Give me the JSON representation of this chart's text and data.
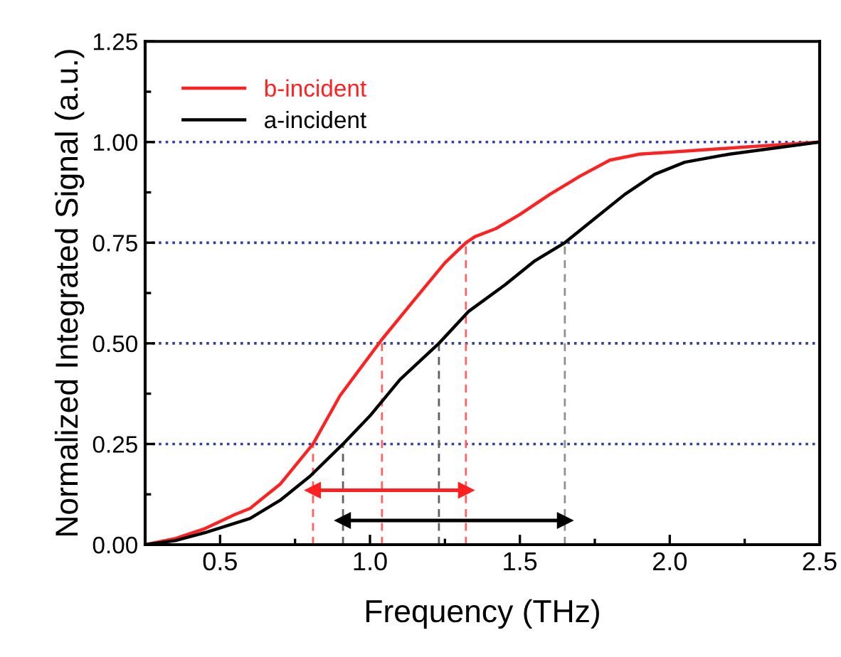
{
  "chart_data": {
    "type": "line",
    "xlabel": "Frequency (THz)",
    "ylabel": "Normalized Integrated Signal (a.u.)",
    "xlim": [
      0.25,
      2.5
    ],
    "xticks": [
      0.5,
      {
        "value": 1,
        "label": "1.0"
      },
      1.5,
      {
        "value": 2,
        "label": "2.0"
      },
      2.5
    ],
    "ylim": [
      0,
      1.25
    ],
    "yticks": [
      {
        "value": 0,
        "label": "0.00"
      },
      {
        "value": 0.25,
        "label": "0.25"
      },
      {
        "value": 0.5,
        "label": "0.50"
      },
      {
        "value": 0.75,
        "label": "0.75"
      },
      {
        "value": 1.0,
        "label": "1.00"
      },
      {
        "value": 1.25,
        "label": "1.25"
      }
    ],
    "grid": "y",
    "legend": "top left",
    "line_style": "solid",
    "marker": "none",
    "series": [
      {
        "name": "b-incident",
        "color": "#ff2020",
        "x": [
          0.25,
          0.35,
          0.45,
          0.55,
          0.6,
          0.7,
          0.81,
          0.9,
          1.04,
          1.15,
          1.25,
          1.32,
          1.35,
          1.42,
          1.5,
          1.6,
          1.7,
          1.8,
          1.9,
          2.0,
          2.2,
          2.5
        ],
        "values": [
          0,
          0.015,
          0.04,
          0.075,
          0.09,
          0.15,
          0.25,
          0.37,
          0.51,
          0.61,
          0.7,
          0.75,
          0.765,
          0.785,
          0.82,
          0.87,
          0.915,
          0.955,
          0.97,
          0.975,
          0.985,
          1.0
        ]
      },
      {
        "name": "a-incident",
        "color": "#000000",
        "x": [
          0.25,
          0.35,
          0.45,
          0.6,
          0.7,
          0.8,
          0.91,
          1.0,
          1.1,
          1.23,
          1.33,
          1.45,
          1.55,
          1.65,
          1.75,
          1.85,
          1.95,
          2.05,
          2.2,
          2.5
        ],
        "values": [
          0,
          0.01,
          0.03,
          0.065,
          0.11,
          0.17,
          0.25,
          0.32,
          0.41,
          0.5,
          0.58,
          0.645,
          0.705,
          0.75,
          0.81,
          0.87,
          0.92,
          0.95,
          0.97,
          1.0
        ]
      },
      {
        "color": "#ff6060",
        "line_style": "dashed",
        "x": [
          0.81,
          0.81
        ],
        "values": [
          0,
          0.25
        ]
      },
      {
        "color": "#ff6060",
        "line_style": "dashed",
        "x": [
          1.04,
          1.04
        ],
        "values": [
          0,
          0.51
        ]
      },
      {
        "color": "#ff6060",
        "line_style": "dashed",
        "x": [
          1.32,
          1.32
        ],
        "values": [
          0,
          0.75
        ]
      },
      {
        "color": "#606060",
        "line_style": "dashed",
        "x": [
          0.91,
          0.91
        ],
        "values": [
          0,
          0.25
        ]
      },
      {
        "color": "#606060",
        "line_style": "dashed",
        "x": [
          1.23,
          1.23
        ],
        "values": [
          0,
          0.5
        ]
      },
      {
        "color": "#909090",
        "line_style": "dashed",
        "x": [
          1.65,
          1.65
        ],
        "values": [
          0,
          0.75
        ]
      },
      {
        "marker": "triangle",
        "color": "#ff2020",
        "x": [
          0.81,
          1.32
        ],
        "values": [
          0.135,
          0.135
        ]
      },
      {
        "marker": "triangle",
        "color": "#000000",
        "x": [
          0.91,
          1.65
        ],
        "values": [
          0.06,
          0.06
        ]
      }
    ]
  }
}
